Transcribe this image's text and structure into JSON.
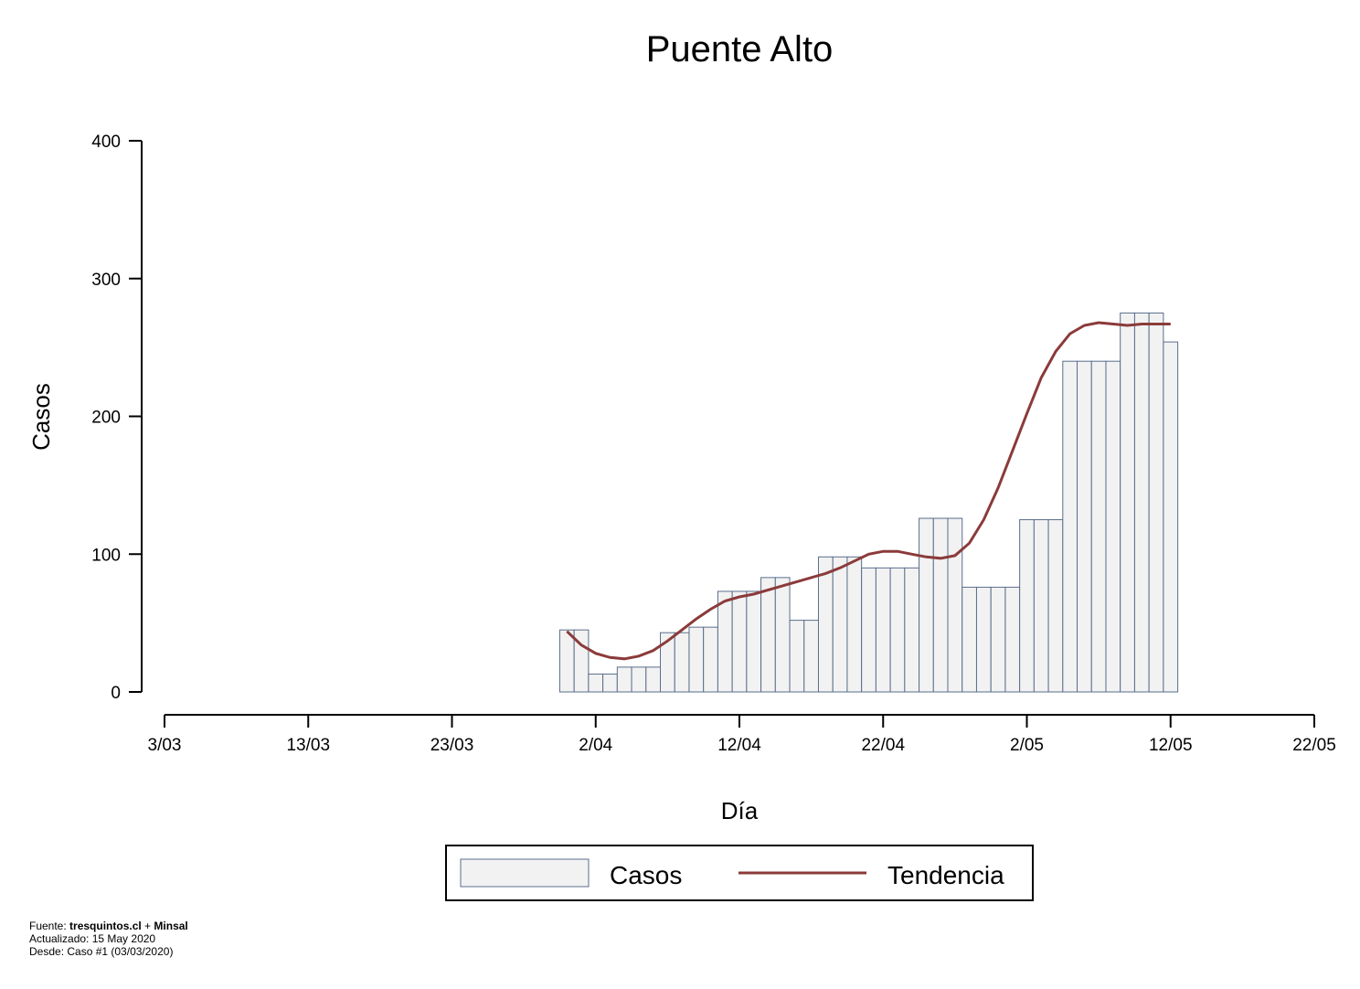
{
  "chart_data": {
    "type": "bar",
    "title": "Puente Alto",
    "xlabel": "Día",
    "ylabel": "Casos",
    "ylim": [
      0,
      400
    ],
    "yticks": [
      0,
      100,
      200,
      300,
      400
    ],
    "ytick_labels": [
      "0",
      "100",
      "200",
      "300",
      "400"
    ],
    "xticks": [
      "3/03",
      "13/03",
      "23/03",
      "2/04",
      "12/04",
      "22/04",
      "2/05",
      "12/05",
      "22/05"
    ],
    "xticks_day": [
      0,
      10,
      20,
      30,
      40,
      50,
      60,
      70,
      80
    ],
    "xlim_day": [
      0,
      80
    ],
    "grid": false,
    "legend_position": "bottom",
    "colors": {
      "bar_fill": "#f2f2f2",
      "bar_stroke": "#5a6e8c",
      "trend": "#8b3a3a"
    },
    "series": [
      {
        "name": "Casos",
        "kind": "bar",
        "start_day": 27.5,
        "values": [
          45,
          45,
          13,
          13,
          18,
          18,
          18,
          43,
          43,
          47,
          47,
          73,
          73,
          73,
          83,
          83,
          52,
          52,
          98,
          98,
          98,
          90,
          90,
          90,
          90,
          126,
          126,
          126,
          76,
          76,
          76,
          76,
          125,
          125,
          125,
          240,
          240,
          240,
          240,
          275,
          275,
          275,
          254
        ]
      },
      {
        "name": "Tendencia",
        "kind": "line",
        "x_day": [
          28,
          29,
          30,
          31,
          32,
          33,
          34,
          35,
          36,
          37,
          38,
          39,
          40,
          41,
          42,
          43,
          44,
          45,
          46,
          47,
          48,
          49,
          50,
          51,
          52,
          53,
          54,
          55,
          56,
          57,
          58,
          59,
          60,
          61,
          62,
          63,
          64,
          65,
          66,
          67,
          68,
          69,
          70
        ],
        "values": [
          44,
          34,
          28,
          25,
          24,
          26,
          30,
          37,
          45,
          53,
          60,
          66,
          69,
          71,
          74,
          77,
          80,
          83,
          86,
          90,
          95,
          100,
          102,
          102,
          100,
          98,
          97,
          99,
          108,
          125,
          148,
          175,
          202,
          228,
          247,
          260,
          266,
          268,
          267,
          266,
          267,
          267,
          267
        ]
      }
    ]
  },
  "legend": {
    "casos": "Casos",
    "tendencia": "Tendencia"
  },
  "footer": {
    "source_prefix": "Fuente: ",
    "source_site": "tresquintos.cl",
    "source_sep": " + ",
    "source_org": "Minsal",
    "updated": "Actualizado: 15 May 2020",
    "since": "Desde: Caso #1  (03/03/2020)"
  }
}
